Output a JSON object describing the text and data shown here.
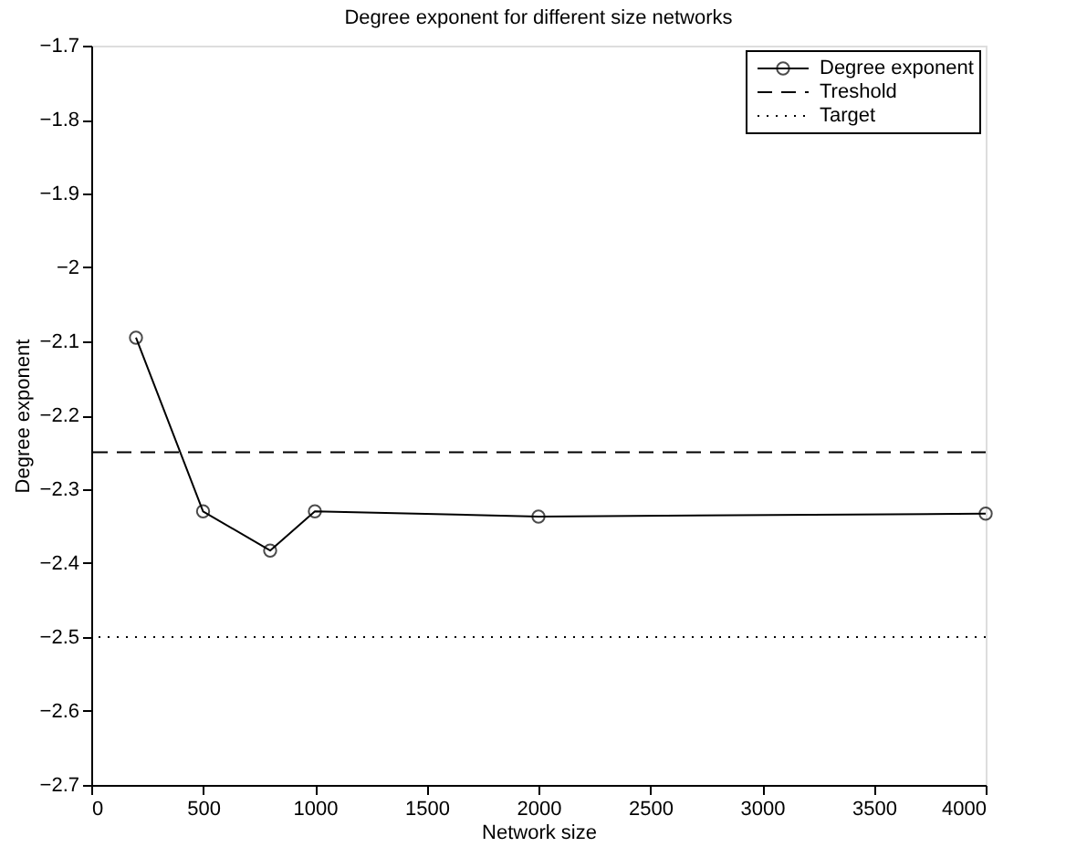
{
  "chart_data": {
    "type": "line",
    "title": "Degree exponent for different size networks",
    "xlabel": "Network size",
    "ylabel": "Degree exponent",
    "x": [
      200,
      500,
      800,
      1000,
      2000,
      4000
    ],
    "series": [
      {
        "name": "Degree exponent",
        "color": "#000000",
        "values": [
          -2.095,
          -2.33,
          -2.383,
          -2.33,
          -2.337,
          -2.333
        ]
      }
    ],
    "ref_lines": [
      {
        "axis": "y",
        "value": -2.25,
        "label": "Treshold",
        "color": "#000000",
        "line_style": "dashed"
      },
      {
        "axis": "y",
        "value": -2.5,
        "label": "Target",
        "color": "#000000",
        "line_style": "dotted"
      }
    ],
    "xlim": [
      0,
      4000
    ],
    "ylim": [
      -2.7,
      -1.7
    ],
    "xticks": [
      0,
      500,
      1000,
      1500,
      2000,
      2500,
      3000,
      3500,
      4000
    ],
    "yticks": [
      -2.7,
      -2.6,
      -2.5,
      -2.4,
      -2.3,
      -2.2,
      -2.1,
      -2,
      -1.9,
      -1.8,
      -1.7
    ],
    "legend": "top right",
    "grid": false,
    "marker": "circle",
    "line_style": "solid"
  }
}
